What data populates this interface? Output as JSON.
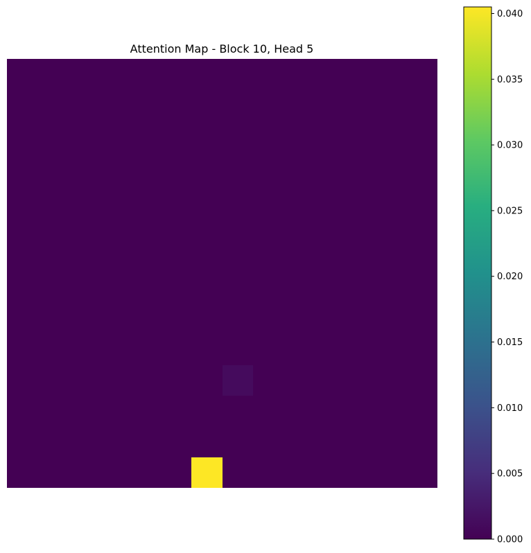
{
  "chart_data": {
    "type": "heatmap",
    "title": "Attention Map - Block 10, Head 5",
    "grid": false,
    "axes_visible": false,
    "rows": 14,
    "cols": 14,
    "colormap": "viridis",
    "background_value": 0.0,
    "cells": [
      {
        "row": 10,
        "col": 7,
        "value": 0.0012
      },
      {
        "row": 13,
        "col": 6,
        "value": 0.0405
      }
    ],
    "colorbar": {
      "min": 0.0,
      "max": 0.0405,
      "ticks": [
        0.0,
        0.005,
        0.01,
        0.015,
        0.02,
        0.025,
        0.03,
        0.035,
        0.04
      ],
      "tick_labels": [
        "0.000",
        "0.005",
        "0.010",
        "0.015",
        "0.020",
        "0.025",
        "0.030",
        "0.035",
        "0.040"
      ],
      "placement": "right"
    }
  }
}
